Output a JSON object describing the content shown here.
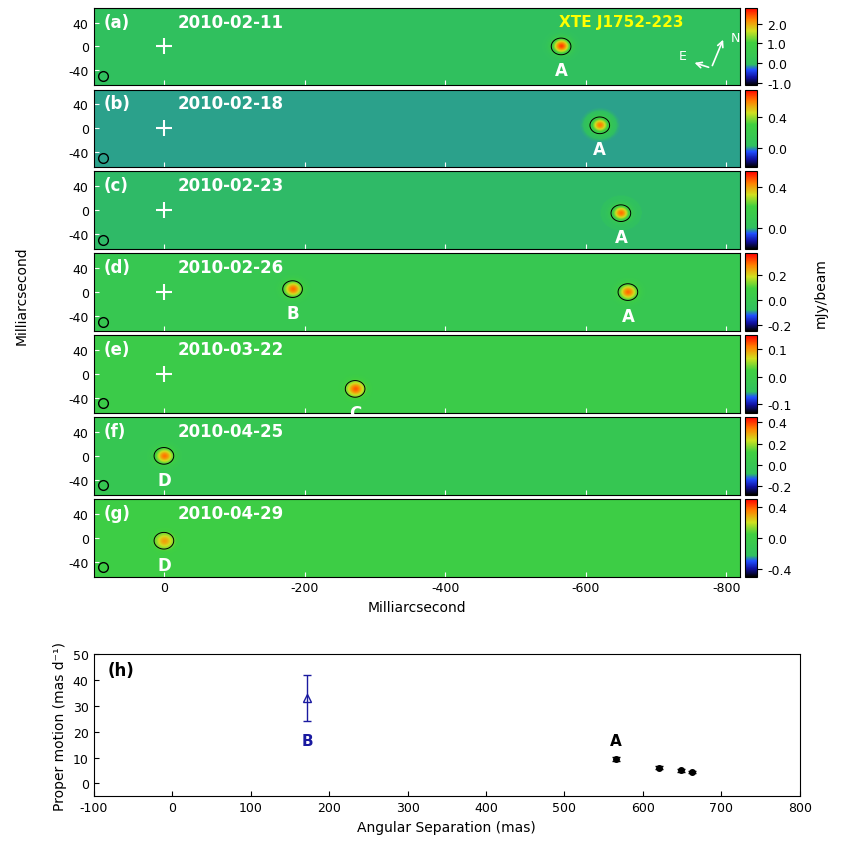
{
  "chart_data": [
    {
      "type": "image",
      "panel": "(a)",
      "date": "2010-02-11",
      "object": "XTE J1752-223",
      "compass": [
        "N",
        "E"
      ],
      "xlim": [
        100,
        -820
      ],
      "ylim": [
        -65,
        65
      ],
      "xticks": [
        0,
        -200,
        -400,
        -600,
        -800
      ],
      "yticks": [
        -40,
        0,
        40
      ],
      "tick_labels": "y",
      "cross": {
        "x": 0,
        "y": 0
      },
      "sources": [
        {
          "name": "A",
          "x": -565,
          "y": 0,
          "peak": 2.5
        }
      ],
      "colorbar": {
        "range": [
          -1.1,
          2.8
        ],
        "ticks": [
          {
            "value": -1,
            "label": "-1.0"
          },
          {
            "value": 0,
            "label": "0.0"
          },
          {
            "value": 1,
            "label": "1.0"
          },
          {
            "value": 2,
            "label": "2.0"
          }
        ]
      }
    },
    {
      "type": "image",
      "panel": "(b)",
      "date": "2010-02-18",
      "xlim": [
        100,
        -820
      ],
      "ylim": [
        -65,
        65
      ],
      "xticks": [
        0,
        -200,
        -400,
        -600,
        -800
      ],
      "yticks": [
        -40,
        0,
        40
      ],
      "tick_labels": "y",
      "cross": {
        "x": 0,
        "y": 0
      },
      "sources": [
        {
          "name": "A",
          "x": -620,
          "y": 5,
          "peak": 0.6
        }
      ],
      "colorbar": {
        "range": [
          -0.25,
          0.75
        ],
        "ticks": [
          {
            "value": 0,
            "label": "0.0"
          },
          {
            "value": 0.4,
            "label": "0.4"
          }
        ]
      }
    },
    {
      "type": "image",
      "panel": "(c)",
      "date": "2010-02-23",
      "xlim": [
        100,
        -820
      ],
      "ylim": [
        -65,
        65
      ],
      "xticks": [
        0,
        -200,
        -400,
        -600,
        -800
      ],
      "yticks": [
        -40,
        0,
        40
      ],
      "tick_labels": "y",
      "cross": {
        "x": 0,
        "y": 0
      },
      "sources": [
        {
          "name": "A",
          "x": -650,
          "y": -5,
          "peak": 0.45
        }
      ],
      "colorbar": {
        "range": [
          -0.2,
          0.55
        ],
        "ticks": [
          {
            "value": 0,
            "label": "0.0"
          },
          {
            "value": 0.4,
            "label": "0.4"
          }
        ]
      }
    },
    {
      "type": "image",
      "panel": "(d)",
      "date": "2010-02-26",
      "colorbar_label": "mJy/beam",
      "xlim": [
        100,
        -820
      ],
      "ylim": [
        -65,
        65
      ],
      "xticks": [
        0,
        -200,
        -400,
        -600,
        -800
      ],
      "yticks": [
        -40,
        0,
        40
      ],
      "tick_labels": "y",
      "cross": {
        "x": 0,
        "y": 0
      },
      "sources": [
        {
          "name": "B",
          "x": -183,
          "y": 5,
          "peak": 0.3
        },
        {
          "name": "A",
          "x": -660,
          "y": 0,
          "peak": 0.3
        }
      ],
      "colorbar": {
        "range": [
          -0.25,
          0.38
        ],
        "ticks": [
          {
            "value": -0.2,
            "label": "-0.2"
          },
          {
            "value": 0,
            "label": "0.0"
          },
          {
            "value": 0.2,
            "label": "0.2"
          }
        ]
      }
    },
    {
      "type": "image",
      "panel": "(e)",
      "date": "2010-03-22",
      "xlim": [
        100,
        -820
      ],
      "ylim": [
        -65,
        65
      ],
      "xticks": [
        0,
        -200,
        -400,
        -600,
        -800
      ],
      "yticks": [
        -40,
        0,
        40
      ],
      "tick_labels": "y",
      "cross": {
        "x": 0,
        "y": 0
      },
      "sources": [
        {
          "name": "C",
          "x": -272,
          "y": -25,
          "peak": 0.12
        }
      ],
      "colorbar": {
        "range": [
          -0.13,
          0.15
        ],
        "ticks": [
          {
            "value": -0.1,
            "label": "-0.1"
          },
          {
            "value": 0,
            "label": "0.0"
          },
          {
            "value": 0.1,
            "label": "0.1"
          }
        ]
      }
    },
    {
      "type": "image",
      "panel": "(f)",
      "date": "2010-04-25",
      "xlim": [
        100,
        -820
      ],
      "ylim": [
        -65,
        65
      ],
      "xticks": [
        0,
        -200,
        -400,
        -600,
        -800
      ],
      "yticks": [
        -40,
        0,
        40
      ],
      "tick_labels": "y",
      "sources": [
        {
          "name": "D",
          "x": 0,
          "y": 0,
          "peak": 0.35
        }
      ],
      "colorbar": {
        "range": [
          -0.28,
          0.45
        ],
        "ticks": [
          {
            "value": -0.2,
            "label": "-0.2"
          },
          {
            "value": 0,
            "label": "0.0"
          },
          {
            "value": 0.2,
            "label": "0.2"
          },
          {
            "value": 0.4,
            "label": "0.4"
          }
        ]
      }
    },
    {
      "type": "image",
      "panel": "(g)",
      "date": "2010-04-29",
      "x_label": "Milliarcsecond",
      "y_label": "Milliarcsecond",
      "xlim": [
        100,
        -820
      ],
      "ylim": [
        -65,
        65
      ],
      "xticks": [
        0,
        -200,
        -400,
        -600,
        -800
      ],
      "yticks": [
        -40,
        0,
        40
      ],
      "sources": [
        {
          "name": "D",
          "x": 0,
          "y": -5,
          "peak": 0.3
        }
      ],
      "colorbar": {
        "range": [
          -0.5,
          0.5
        ],
        "ticks": [
          {
            "value": -0.4,
            "label": "-0.4"
          },
          {
            "value": 0,
            "label": "0.0"
          },
          {
            "value": 0.4,
            "label": "0.4"
          }
        ]
      }
    },
    {
      "type": "scatter",
      "panel": "(h)",
      "x_label": "Angular Separation (mas)",
      "y_label": "Proper motion (mas d⁻¹)",
      "xlim": [
        -100,
        800
      ],
      "ylim": [
        -5,
        50
      ],
      "xticks": [
        -100,
        0,
        100,
        200,
        300,
        400,
        500,
        600,
        700,
        800
      ],
      "yticks": [
        0,
        10,
        20,
        30,
        40,
        50
      ],
      "series": [
        {
          "name": "B",
          "color": "#1a1aa0",
          "marker": "triangle",
          "x": [
            172
          ],
          "values": [
            33
          ],
          "errors": [
            9
          ]
        },
        {
          "name": "A",
          "color": "#000000",
          "marker": "circle",
          "x": [
            565,
            620,
            648,
            662
          ],
          "values": [
            9.5,
            6,
            5,
            4.5
          ],
          "errors": [
            0.8,
            0.6,
            0.5,
            0.4
          ]
        }
      ]
    }
  ]
}
